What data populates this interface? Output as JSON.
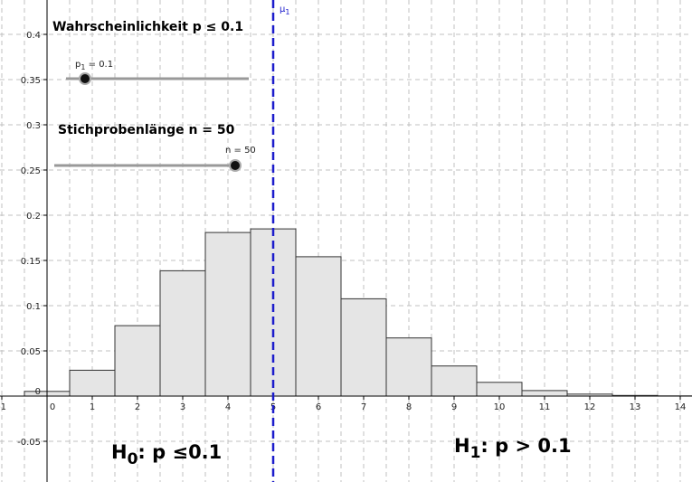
{
  "chart_data": {
    "type": "histogram",
    "bins": [
      -0.5,
      0.5,
      1.5,
      2.5,
      3.5,
      4.5,
      5.5,
      6.5,
      7.5,
      8.5,
      9.5,
      10.5,
      11.5,
      12.5,
      13.5,
      14.5
    ],
    "values": [
      0.0052,
      0.0286,
      0.0779,
      0.1386,
      0.1809,
      0.1849,
      0.1541,
      0.1076,
      0.0643,
      0.0333,
      0.0152,
      0.0061,
      0.0022,
      0.0007,
      0.0002
    ],
    "color": "#e5e5e5",
    "edge_color": "#333333",
    "xlim": [
      -1.04,
      14.26
    ],
    "ylim": [
      -0.095,
      0.438
    ],
    "xticks": [
      -1,
      0,
      1,
      2,
      3,
      4,
      5,
      6,
      7,
      8,
      9,
      10,
      11,
      12,
      13,
      14
    ],
    "yticks": [
      -0.05,
      0,
      0.05,
      0.1,
      0.15,
      0.2,
      0.25,
      0.3,
      0.35,
      0.4
    ],
    "grid": true,
    "x_grid_step": 0.5,
    "mean_line": {
      "x": 5,
      "color": "#1c1ccc",
      "label": [
        "μ",
        "1"
      ]
    },
    "title_p": "Wahrscheinlichkeit p ≤ 0.1",
    "title_n": "Stichprobenlänge n = 50",
    "slider_p": [
      "p",
      "1",
      " = 0.1"
    ],
    "slider_n": "n = 50",
    "h0": [
      "H",
      "0",
      ": p ≤0.1"
    ],
    "h1": [
      "H",
      "1",
      ": p > 0.1"
    ]
  }
}
